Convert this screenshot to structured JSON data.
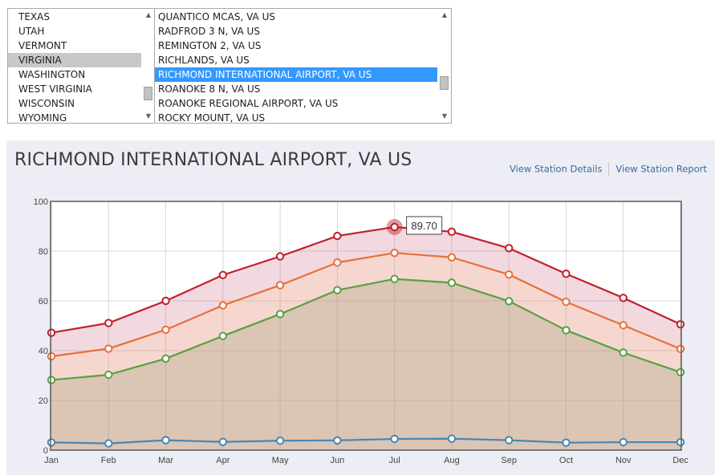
{
  "states": {
    "items": [
      "TEXAS",
      "UTAH",
      "VERMONT",
      "VIRGINIA",
      "WASHINGTON",
      "WEST VIRGINIA",
      "WISCONSIN",
      "WYOMING"
    ],
    "selected_index": 3
  },
  "stations": {
    "items": [
      "QUANTICO MCAS, VA US",
      "RADFROD 3 N, VA US",
      "REMINGTON 2, VA US",
      "RICHLANDS, VA US",
      "RICHMOND INTERNATIONAL AIRPORT, VA US",
      "ROANOKE 8 N, VA US",
      "ROANOKE REGIONAL AIRPORT, VA US",
      "ROCKY MOUNT, VA US"
    ],
    "selected_index": 4
  },
  "panel": {
    "title": "RICHMOND INTERNATIONAL AIRPORT, VA US",
    "link_details": "View Station Details",
    "link_report": "View Station Report"
  },
  "colors": {
    "high": "#c0202a",
    "normal": "#e8703a",
    "low": "#5aa040",
    "precip": "#4a86b0",
    "selected_state_bg": "#c8c8c8",
    "selected_station_bg": "#3399ff"
  },
  "chart_data": {
    "type": "line",
    "categories": [
      "Jan",
      "Feb",
      "Mar",
      "Apr",
      "May",
      "Jun",
      "Jul",
      "Aug",
      "Sep",
      "Oct",
      "Nov",
      "Dec"
    ],
    "ylim": [
      0,
      100
    ],
    "yticks": [
      0,
      20,
      40,
      60,
      80,
      100
    ],
    "grid": true,
    "series": [
      {
        "key": "high",
        "values": [
          47.2,
          51.1,
          60.0,
          70.4,
          77.9,
          86.1,
          89.7,
          87.8,
          81.2,
          70.9,
          61.2,
          50.6
        ]
      },
      {
        "key": "normal",
        "values": [
          37.7,
          40.8,
          48.4,
          58.2,
          66.3,
          75.4,
          79.3,
          77.5,
          70.6,
          59.6,
          50.2,
          40.7
        ]
      },
      {
        "key": "low",
        "values": [
          28.2,
          30.3,
          36.8,
          45.9,
          54.7,
          64.3,
          68.8,
          67.3,
          59.9,
          48.2,
          39.2,
          31.3
        ]
      },
      {
        "key": "precip",
        "values": [
          3.1,
          2.7,
          4.0,
          3.3,
          3.8,
          3.9,
          4.5,
          4.6,
          4.0,
          3.0,
          3.2,
          3.2
        ]
      }
    ],
    "tooltip": {
      "series": "high",
      "index": 6,
      "label": "89.70"
    }
  }
}
